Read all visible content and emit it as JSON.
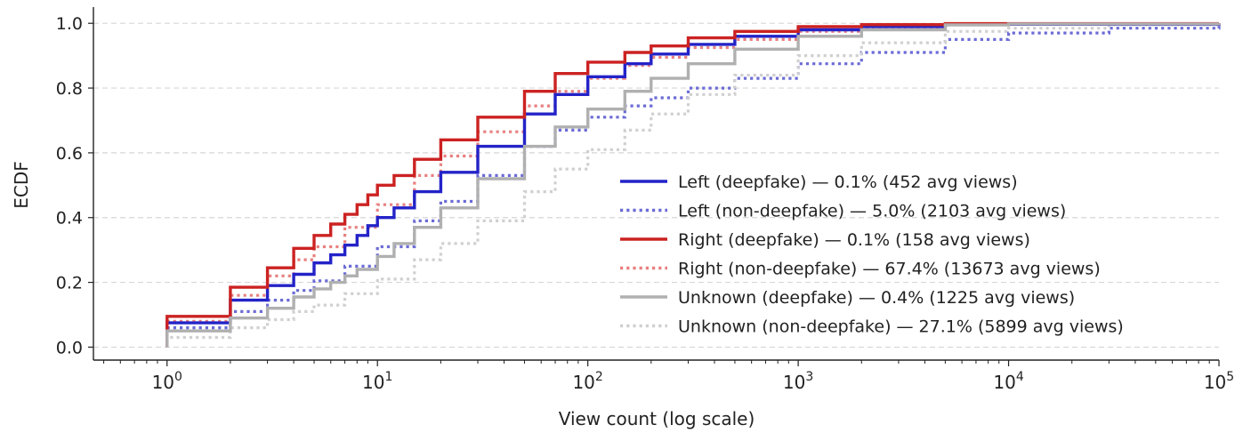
{
  "chart_data": {
    "type": "line",
    "step": true,
    "title": "",
    "xlabel": "View count (log scale)",
    "ylabel": "ECDF",
    "xscale": "log",
    "xlim_log10": [
      -0.35,
      5
    ],
    "ylim": [
      -0.04,
      1.05
    ],
    "grid": "y-dashed",
    "legend_position": "lower-right",
    "x_tick_values": [
      1,
      10,
      100,
      1000,
      10000,
      100000
    ],
    "x_tick_labels": [
      {
        "base": "10",
        "exp": "0"
      },
      {
        "base": "10",
        "exp": "1"
      },
      {
        "base": "10",
        "exp": "2"
      },
      {
        "base": "10",
        "exp": "3"
      },
      {
        "base": "10",
        "exp": "4"
      },
      {
        "base": "10",
        "exp": "5"
      }
    ],
    "y_ticks": [
      0.0,
      0.2,
      0.4,
      0.6,
      0.8,
      1.0
    ],
    "y_tick_labels": [
      "0.0",
      "0.2",
      "0.4",
      "0.6",
      "0.8",
      "1.0"
    ],
    "series": [
      {
        "name": "Left (deepfake)",
        "label": "Left (deepfake) — 0.1% (452 avg views)",
        "color": "#2323c8",
        "style": "solid",
        "x": [
          1,
          2,
          3,
          4,
          5,
          6,
          7,
          8,
          9,
          10,
          12,
          15,
          20,
          30,
          50,
          70,
          100,
          150,
          200,
          300,
          500,
          1000,
          2000,
          5000,
          100000
        ],
        "y": [
          0.075,
          0.145,
          0.19,
          0.225,
          0.26,
          0.285,
          0.315,
          0.345,
          0.375,
          0.4,
          0.43,
          0.48,
          0.54,
          0.62,
          0.72,
          0.78,
          0.835,
          0.875,
          0.905,
          0.935,
          0.96,
          0.98,
          0.99,
          0.997,
          1.0
        ]
      },
      {
        "name": "Left (non-deepfake)",
        "label": "Left (non-deepfake) — 5.0% (2103 avg views)",
        "color": "#6b6bd6",
        "style": "dotted",
        "x": [
          1,
          2,
          3,
          4,
          5,
          7,
          10,
          15,
          20,
          30,
          50,
          70,
          100,
          150,
          200,
          300,
          500,
          1000,
          2000,
          5000,
          10000,
          30000,
          100000
        ],
        "y": [
          0.06,
          0.11,
          0.145,
          0.175,
          0.205,
          0.25,
          0.31,
          0.39,
          0.45,
          0.53,
          0.62,
          0.67,
          0.71,
          0.745,
          0.77,
          0.8,
          0.83,
          0.875,
          0.91,
          0.95,
          0.97,
          0.985,
          0.995
        ]
      },
      {
        "name": "Right (deepfake)",
        "label": "Right (deepfake) — 0.1% (158 avg views)",
        "color": "#cc2222",
        "style": "solid",
        "x": [
          1,
          2,
          3,
          4,
          5,
          6,
          7,
          8,
          9,
          10,
          12,
          15,
          20,
          30,
          50,
          70,
          100,
          150,
          200,
          300,
          500,
          1000,
          2000,
          5000,
          100000
        ],
        "y": [
          0.095,
          0.185,
          0.245,
          0.305,
          0.345,
          0.38,
          0.41,
          0.44,
          0.47,
          0.5,
          0.53,
          0.58,
          0.64,
          0.71,
          0.79,
          0.845,
          0.88,
          0.91,
          0.93,
          0.955,
          0.975,
          0.99,
          0.996,
          0.999,
          1.0
        ]
      },
      {
        "name": "Right (non-deepfake)",
        "label": "Right (non-deepfake) — 67.4% (13673 avg views)",
        "color": "#e88080",
        "style": "dotted",
        "x": [
          1,
          2,
          3,
          4,
          5,
          7,
          10,
          15,
          20,
          30,
          50,
          70,
          100,
          150,
          200,
          300,
          500,
          1000,
          2000,
          5000,
          10000,
          30000,
          100000
        ],
        "y": [
          0.08,
          0.16,
          0.22,
          0.27,
          0.31,
          0.37,
          0.44,
          0.53,
          0.59,
          0.665,
          0.745,
          0.79,
          0.83,
          0.87,
          0.895,
          0.925,
          0.95,
          0.975,
          0.988,
          0.996,
          0.998,
          0.999,
          1.0
        ]
      },
      {
        "name": "Unknown (deepfake)",
        "label": "Unknown (deepfake) — 0.4% (1225 avg views)",
        "color": "#b0b0b0",
        "style": "solid",
        "x": [
          1,
          2,
          3,
          4,
          5,
          6,
          7,
          8,
          10,
          12,
          15,
          20,
          30,
          50,
          70,
          100,
          150,
          200,
          300,
          500,
          1000,
          2000,
          5000,
          10000,
          100000
        ],
        "y": [
          0.05,
          0.09,
          0.12,
          0.155,
          0.18,
          0.2,
          0.22,
          0.24,
          0.28,
          0.32,
          0.37,
          0.43,
          0.52,
          0.62,
          0.68,
          0.735,
          0.79,
          0.83,
          0.875,
          0.92,
          0.96,
          0.98,
          0.995,
          0.998,
          1.0
        ]
      },
      {
        "name": "Unknown (non-deepfake)",
        "label": "Unknown (non-deepfake) — 27.1% (5899 avg views)",
        "color": "#d0d0d0",
        "style": "dotted",
        "x": [
          1,
          2,
          3,
          4,
          5,
          7,
          10,
          15,
          20,
          30,
          50,
          70,
          100,
          150,
          200,
          300,
          500,
          1000,
          2000,
          5000,
          10000,
          30000,
          100000
        ],
        "y": [
          0.03,
          0.06,
          0.085,
          0.11,
          0.13,
          0.165,
          0.21,
          0.27,
          0.32,
          0.39,
          0.48,
          0.55,
          0.61,
          0.67,
          0.72,
          0.78,
          0.84,
          0.9,
          0.94,
          0.975,
          0.985,
          0.995,
          1.0
        ]
      }
    ]
  }
}
